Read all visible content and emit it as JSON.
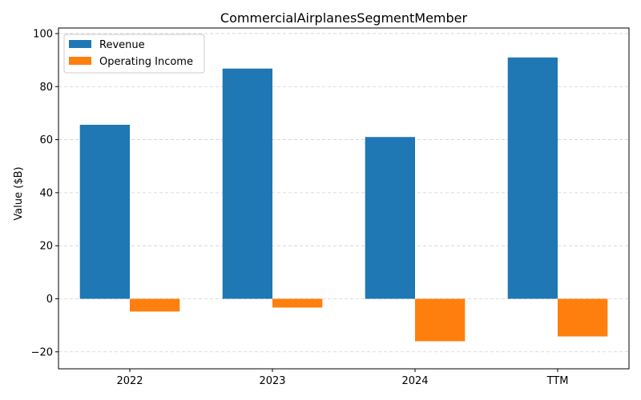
{
  "chart_data": {
    "type": "bar",
    "title": "CommercialAirplanesSegmentMember",
    "xlabel": "",
    "ylabel": "Value ($B)",
    "categories": [
      "2022",
      "2023",
      "2024",
      "TTM"
    ],
    "series": [
      {
        "name": "Revenue",
        "values": [
          65.6,
          86.8,
          61.0,
          91.0
        ],
        "color": "#1f77b4"
      },
      {
        "name": "Operating Income",
        "values": [
          -4.8,
          -3.3,
          -16.0,
          -14.2
        ],
        "color": "#ff7f0e"
      }
    ],
    "ylim": [
      -26.4,
      102.1
    ],
    "yticks": [
      -20,
      0,
      20,
      40,
      60,
      80,
      100
    ],
    "ytick_labels": [
      "−20",
      "0",
      "20",
      "40",
      "60",
      "80",
      "100"
    ],
    "grid": true,
    "legend_position": "upper-left"
  }
}
